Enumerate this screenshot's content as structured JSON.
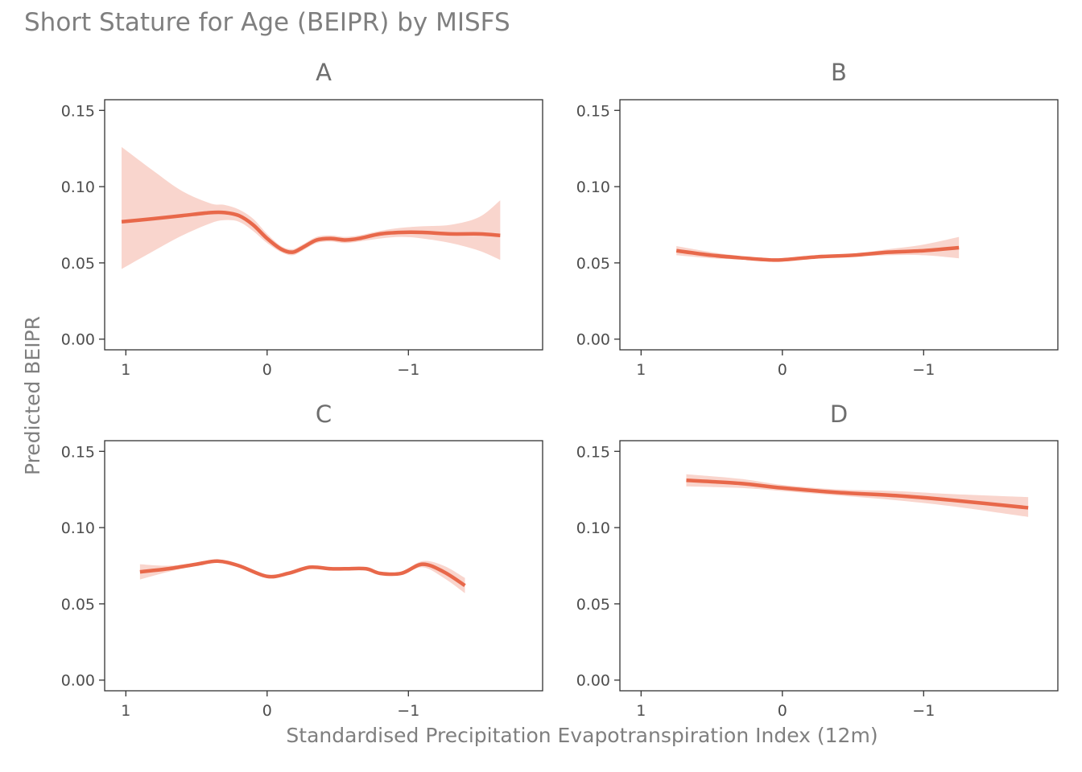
{
  "chart_data": {
    "type": "line",
    "title": "Short Stature for Age (BEIPR) by MISFS",
    "xlabel": "Standardised Precipitation Evapotranspiration Index (12m)",
    "ylabel": "Predicted BEIPR",
    "xlim": [
      1.15,
      -1.95
    ],
    "ylim": [
      -0.007,
      0.157
    ],
    "x_reversed": true,
    "x_ticks": [
      1,
      0,
      -1
    ],
    "x_tick_labels": [
      "1",
      "0",
      "−1"
    ],
    "y_ticks": [
      0.0,
      0.05,
      0.1,
      0.15
    ],
    "y_tick_labels": [
      "0.00",
      "0.05",
      "0.10",
      "0.15"
    ],
    "line_color": "#e8684a",
    "ribbon_color": "#f9d5cd",
    "panels": [
      {
        "label": "A",
        "x": [
          1.03,
          0.8,
          0.6,
          0.4,
          0.3,
          0.2,
          0.1,
          0.0,
          -0.1,
          -0.18,
          -0.25,
          -0.35,
          -0.45,
          -0.55,
          -0.65,
          -0.8,
          -0.95,
          -1.1,
          -1.3,
          -1.5,
          -1.65
        ],
        "y": [
          0.077,
          0.079,
          0.081,
          0.083,
          0.083,
          0.081,
          0.075,
          0.066,
          0.059,
          0.057,
          0.06,
          0.065,
          0.066,
          0.065,
          0.066,
          0.069,
          0.07,
          0.07,
          0.069,
          0.069,
          0.068
        ],
        "lower": [
          0.046,
          0.058,
          0.068,
          0.076,
          0.078,
          0.077,
          0.071,
          0.063,
          0.057,
          0.055,
          0.058,
          0.063,
          0.064,
          0.063,
          0.064,
          0.066,
          0.067,
          0.066,
          0.063,
          0.058,
          0.052
        ],
        "upper": [
          0.126,
          0.11,
          0.097,
          0.089,
          0.088,
          0.085,
          0.079,
          0.069,
          0.061,
          0.059,
          0.062,
          0.067,
          0.068,
          0.067,
          0.068,
          0.071,
          0.073,
          0.074,
          0.075,
          0.08,
          0.091
        ]
      },
      {
        "label": "B",
        "x": [
          0.75,
          0.5,
          0.25,
          0.1,
          0.0,
          -0.25,
          -0.5,
          -0.75,
          -1.0,
          -1.25
        ],
        "y": [
          0.058,
          0.055,
          0.053,
          0.052,
          0.052,
          0.054,
          0.055,
          0.057,
          0.058,
          0.06
        ],
        "lower": [
          0.055,
          0.053,
          0.052,
          0.051,
          0.051,
          0.053,
          0.054,
          0.055,
          0.055,
          0.053
        ],
        "upper": [
          0.061,
          0.057,
          0.054,
          0.053,
          0.053,
          0.055,
          0.056,
          0.059,
          0.062,
          0.067
        ]
      },
      {
        "label": "C",
        "x": [
          0.9,
          0.7,
          0.5,
          0.35,
          0.2,
          0.0,
          -0.15,
          -0.3,
          -0.45,
          -0.55,
          -0.7,
          -0.8,
          -0.95,
          -1.1,
          -1.25,
          -1.4
        ],
        "y": [
          0.071,
          0.073,
          0.076,
          0.078,
          0.075,
          0.068,
          0.07,
          0.074,
          0.073,
          0.073,
          0.073,
          0.07,
          0.07,
          0.076,
          0.071,
          0.062
        ],
        "lower": [
          0.066,
          0.071,
          0.075,
          0.077,
          0.074,
          0.067,
          0.069,
          0.073,
          0.072,
          0.072,
          0.072,
          0.069,
          0.069,
          0.074,
          0.067,
          0.057
        ],
        "upper": [
          0.076,
          0.075,
          0.077,
          0.079,
          0.076,
          0.069,
          0.071,
          0.075,
          0.074,
          0.074,
          0.074,
          0.071,
          0.071,
          0.078,
          0.075,
          0.067
        ]
      },
      {
        "label": "D",
        "x": [
          0.68,
          0.3,
          0.0,
          -0.4,
          -0.8,
          -1.2,
          -1.74
        ],
        "y": [
          0.131,
          0.129,
          0.126,
          0.123,
          0.121,
          0.118,
          0.113
        ],
        "lower": [
          0.127,
          0.126,
          0.124,
          0.121,
          0.118,
          0.114,
          0.107
        ],
        "upper": [
          0.135,
          0.132,
          0.128,
          0.125,
          0.124,
          0.122,
          0.12
        ]
      }
    ]
  }
}
